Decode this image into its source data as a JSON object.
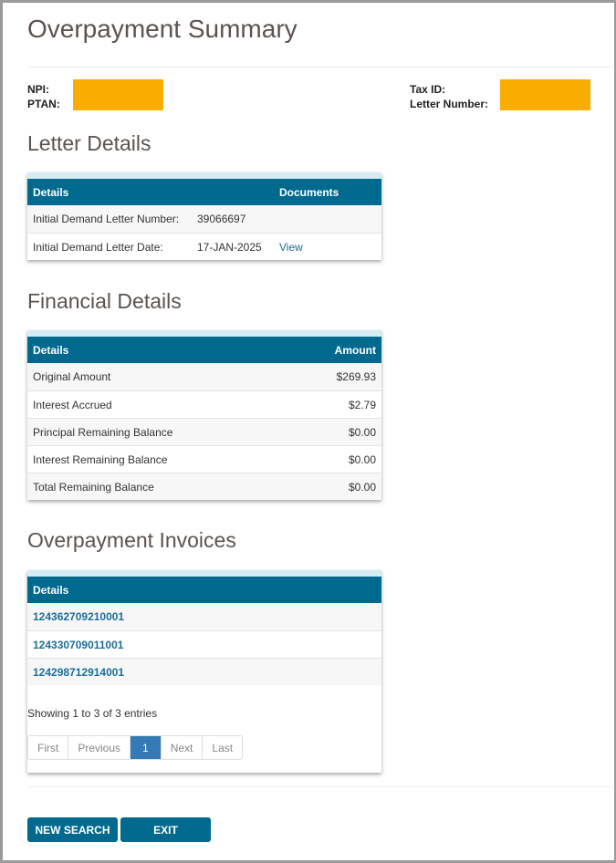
{
  "title": "Overpayment Summary",
  "provider": {
    "npi_label": "NPI:",
    "ptan_label": "PTAN:",
    "taxid_label": "Tax ID:",
    "letter_number_label": "Letter Number:",
    "redaction_color": "#f8ad00"
  },
  "letter_details": {
    "heading": "Letter Details",
    "headers": [
      "Details",
      "Documents"
    ],
    "rows": [
      {
        "label": "Initial Demand Letter Number:",
        "value": "39066697",
        "doc": ""
      },
      {
        "label": "Initial Demand Letter Date:",
        "value": "17-JAN-2025",
        "doc": "View"
      }
    ]
  },
  "financial_details": {
    "heading": "Financial Details",
    "headers": [
      "Details",
      "Amount"
    ],
    "rows": [
      {
        "label": "Original Amount",
        "value": "$269.93"
      },
      {
        "label": "Interest Accrued",
        "value": "$2.79"
      },
      {
        "label": "Principal Remaining Balance",
        "value": "$0.00"
      },
      {
        "label": "Interest Remaining Balance",
        "value": "$0.00"
      },
      {
        "label": "Total Remaining Balance",
        "value": "$0.00"
      }
    ]
  },
  "invoices": {
    "heading": "Overpayment Invoices",
    "header": "Details",
    "rows": [
      "124362709210001",
      "124330709011001",
      "124298712914001"
    ],
    "info": "Showing 1 to 3 of 3 entries",
    "pager": {
      "first": "First",
      "previous": "Previous",
      "current": "1",
      "next": "Next",
      "last": "Last"
    }
  },
  "buttons": {
    "new_search": "NEW SEARCH",
    "exit": "EXIT"
  },
  "colors": {
    "header": "#006a8e",
    "accent": "#337ab7"
  }
}
